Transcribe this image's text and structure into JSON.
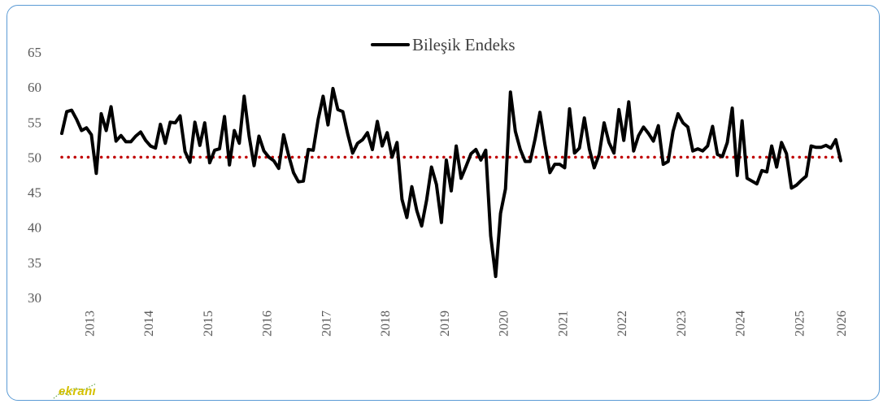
{
  "chart_data": {
    "type": "line",
    "legend": [
      "Bileşik Endeks"
    ],
    "legend_position": "top-center",
    "series": [
      {
        "name": "Bileşik Endeks",
        "color": "#000000",
        "values": [
          53.4,
          56.5,
          56.7,
          55.4,
          53.8,
          54.2,
          53.2,
          47.7,
          56.2,
          53.8,
          57.2,
          52.3,
          53.1,
          52.2,
          52.2,
          53.0,
          53.6,
          52.4,
          51.6,
          51.3,
          54.7,
          52.0,
          55.0,
          54.9,
          55.9,
          50.8,
          49.3,
          55.0,
          51.7,
          54.9,
          49.2,
          51.0,
          51.2,
          55.8,
          48.9,
          53.8,
          52.0,
          58.7,
          53.0,
          48.8,
          53.0,
          50.9,
          50.0,
          49.5,
          48.4,
          53.2,
          50.3,
          47.8,
          46.5,
          46.6,
          51.1,
          51.0,
          55.4,
          58.7,
          54.6,
          59.8,
          56.8,
          56.5,
          53.3,
          50.6,
          52.0,
          52.5,
          53.5,
          51.1,
          55.1,
          51.6,
          53.5,
          50.0,
          52.1,
          44.0,
          41.4,
          45.8,
          42.4,
          40.2,
          43.9,
          48.6,
          46.1,
          40.7,
          49.6,
          45.2,
          51.6,
          47.0,
          48.7,
          50.5,
          51.1,
          49.6,
          51.0,
          38.8,
          33.0,
          42.0,
          45.5,
          59.3,
          53.7,
          51.1,
          49.4,
          49.4,
          52.6,
          56.4,
          51.8,
          47.8,
          49.0,
          49.0,
          48.5,
          56.9,
          50.6,
          51.3,
          55.6,
          51.2,
          48.5,
          50.4,
          54.9,
          52.1,
          50.6,
          56.8,
          52.4,
          57.9,
          50.9,
          53.1,
          54.3,
          53.4,
          52.3,
          54.5,
          49.0,
          49.4,
          53.7,
          56.2,
          54.9,
          54.3,
          50.9,
          51.2,
          50.9,
          51.6,
          54.4,
          50.4,
          50.1,
          52.1,
          57.0,
          47.4,
          55.2,
          47.0,
          46.6,
          46.2,
          48.1,
          47.9,
          51.6,
          48.6,
          52.1,
          50.5,
          45.6,
          46.0,
          46.7,
          47.3,
          51.6,
          51.4,
          51.4,
          51.7,
          51.3,
          52.5,
          49.5
        ]
      },
      {
        "name": "",
        "color": "#c00000",
        "style": "dotted",
        "reference": 50
      }
    ],
    "x_start": "2013-01",
    "x_end": "2026-02",
    "x_tick_labels": [
      "2013",
      "2014",
      "2015",
      "2016",
      "2017",
      "2018",
      "2019",
      "2020",
      "2021",
      "2022",
      "2023",
      "2024",
      "2025",
      "2026"
    ],
    "y_tick_labels": [
      "30",
      "35",
      "40",
      "45",
      "50",
      "55",
      "60",
      "65"
    ],
    "ylim": [
      30,
      65
    ],
    "title": "",
    "xlabel": "",
    "ylabel": "",
    "grid": false
  },
  "logo": {
    "text": "ekranı",
    "color": "#d4c000"
  }
}
